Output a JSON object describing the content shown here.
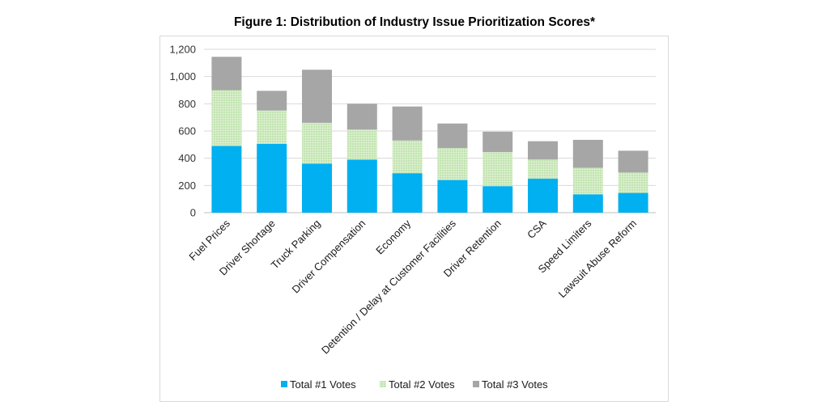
{
  "chart_data": {
    "type": "bar",
    "stacked": true,
    "title": "Figure 1: Distribution of Industry Issue Prioritization Scores*",
    "xlabel": "",
    "ylabel": "",
    "ylim": [
      0,
      1200
    ],
    "yticks": [
      "0",
      "200",
      "400",
      "600",
      "800",
      "1,000",
      "1,200"
    ],
    "grid": true,
    "legend_position": "bottom",
    "categories": [
      "Fuel Prices",
      "Driver Shortage",
      "Truck Parking",
      "Driver Compensation",
      "Economy",
      "Detention / Delay at Customer Facilities",
      "Driver Retention",
      "CSA",
      "Speed Limiters",
      "Lawsuit Abuse Reform"
    ],
    "series": [
      {
        "name": "Total #1 Votes",
        "color": "#00b0f0",
        "pattern": "solid",
        "values": [
          490,
          505,
          360,
          390,
          290,
          240,
          195,
          250,
          135,
          145
        ]
      },
      {
        "name": "Total #2 Votes",
        "color": "#c6e7b4",
        "pattern": "dotted",
        "values": [
          410,
          245,
          300,
          220,
          240,
          235,
          250,
          140,
          195,
          150
        ]
      },
      {
        "name": "Total #3 Votes",
        "color": "#a6a6a6",
        "pattern": "solid",
        "values": [
          245,
          145,
          390,
          190,
          250,
          180,
          150,
          135,
          205,
          160
        ]
      }
    ]
  }
}
